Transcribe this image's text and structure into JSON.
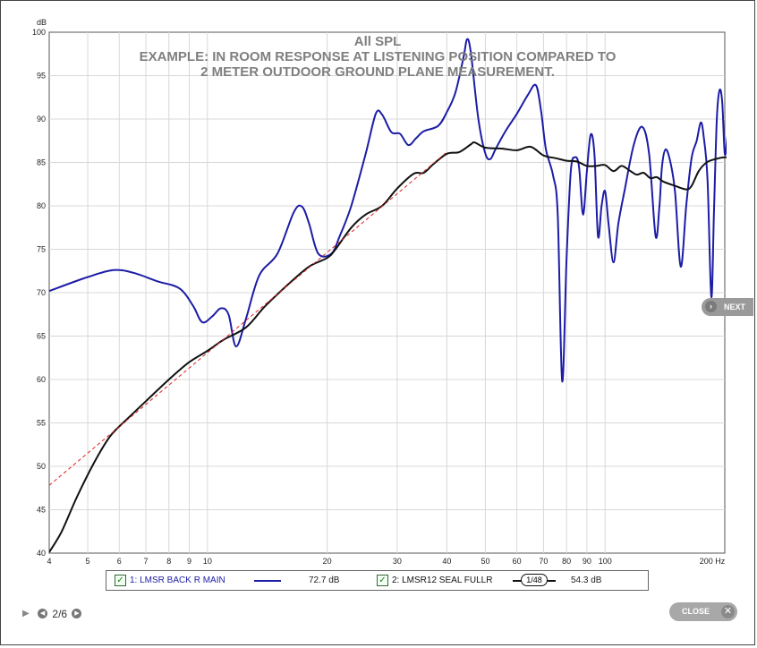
{
  "chart_data": {
    "type": "line",
    "title": "All SPL",
    "subtitle_lines": [
      "EXAMPLE: IN ROOM RESPONSE AT LISTENING POSITION COMPARED TO",
      "2 METER OUTDOOR GROUND PLANE MEASUREMENT."
    ],
    "ylabel": "dB",
    "xlabel": "Hz",
    "xscale": "log",
    "xlim": [
      4,
      200
    ],
    "ylim": [
      40,
      100
    ],
    "x_ticks": [
      4,
      5,
      6,
      7,
      8,
      9,
      10,
      20,
      30,
      40,
      50,
      60,
      70,
      80,
      90,
      100,
      200
    ],
    "x_tick_labels": [
      "4",
      "5",
      "6",
      "7",
      "8",
      "9",
      "10",
      "20",
      "30",
      "40",
      "50",
      "60",
      "70",
      "80",
      "90",
      "100",
      "200 Hz"
    ],
    "y_ticks": [
      40,
      45,
      50,
      55,
      60,
      65,
      70,
      75,
      80,
      85,
      90,
      95,
      100
    ],
    "y_tick_labels": [
      "40",
      "45",
      "50",
      "55",
      "60",
      "65",
      "70",
      "75",
      "80",
      "85",
      "90",
      "95",
      "100"
    ],
    "grid": true,
    "series": [
      {
        "name": "1: LMSR BACK R MAIN",
        "color": "#1c1ca6",
        "points": [
          [
            4,
            70.2
          ],
          [
            5,
            71.8
          ],
          [
            5.8,
            72.6
          ],
          [
            6.5,
            72.3
          ],
          [
            7.5,
            71.3
          ],
          [
            8.5,
            70.5
          ],
          [
            9.2,
            68.5
          ],
          [
            9.7,
            66.6
          ],
          [
            10.3,
            67.3
          ],
          [
            10.8,
            68.2
          ],
          [
            11.3,
            67.5
          ],
          [
            11.8,
            63.8
          ],
          [
            12.5,
            67
          ],
          [
            13.5,
            72
          ],
          [
            15,
            74.5
          ],
          [
            16.5,
            79.3
          ],
          [
            17.3,
            79.9
          ],
          [
            18,
            78
          ],
          [
            19,
            74.5
          ],
          [
            20.5,
            74.5
          ],
          [
            21.5,
            76.5
          ],
          [
            23,
            80
          ],
          [
            25,
            86
          ],
          [
            26.5,
            90.6
          ],
          [
            27.5,
            90.5
          ],
          [
            29,
            88.5
          ],
          [
            30.5,
            88.3
          ],
          [
            32,
            87
          ],
          [
            33.5,
            87.8
          ],
          [
            35,
            88.6
          ],
          [
            38,
            89.2
          ],
          [
            40,
            90.8
          ],
          [
            42,
            93
          ],
          [
            44,
            97
          ],
          [
            45,
            99.2
          ],
          [
            46,
            97.5
          ],
          [
            48,
            90
          ],
          [
            50,
            86
          ],
          [
            51.5,
            85.4
          ],
          [
            53,
            86.5
          ],
          [
            56,
            88.5
          ],
          [
            60,
            90.6
          ],
          [
            64,
            92.8
          ],
          [
            67,
            93.9
          ],
          [
            69,
            91
          ],
          [
            71,
            86.5
          ],
          [
            74,
            83.5
          ],
          [
            76,
            79
          ],
          [
            78,
            59.8
          ],
          [
            80,
            74
          ],
          [
            82,
            84
          ],
          [
            84,
            85.6
          ],
          [
            86,
            84.5
          ],
          [
            88,
            79
          ],
          [
            90,
            84
          ],
          [
            92,
            88.2
          ],
          [
            94,
            86
          ],
          [
            96,
            76.5
          ],
          [
            98,
            80
          ],
          [
            100,
            81.7
          ],
          [
            102,
            78
          ],
          [
            105,
            73.5
          ],
          [
            108,
            78
          ],
          [
            112,
            81.8
          ],
          [
            118,
            87
          ],
          [
            124,
            89.1
          ],
          [
            129,
            86
          ],
          [
            134,
            76.5
          ],
          [
            137,
            80
          ],
          [
            139,
            84.5
          ],
          [
            142,
            86.5
          ],
          [
            146,
            85
          ],
          [
            150,
            81.5
          ],
          [
            155,
            73
          ],
          [
            160,
            80
          ],
          [
            165,
            85.5
          ],
          [
            170,
            87.5
          ],
          [
            174,
            89.6
          ],
          [
            177,
            88
          ],
          [
            181,
            83
          ],
          [
            185,
            69.5
          ],
          [
            188,
            80
          ],
          [
            191,
            90
          ],
          [
            194,
            93.3
          ],
          [
            197,
            92
          ],
          [
            200,
            86
          ],
          [
            203,
            88
          ],
          [
            206,
            89.9
          ]
        ]
      },
      {
        "name": "2: LMSR12 SEAL FULLR",
        "color": "#111111",
        "points": [
          [
            4,
            40.1
          ],
          [
            4.3,
            42.5
          ],
          [
            4.7,
            46.5
          ],
          [
            5.2,
            50.5
          ],
          [
            5.7,
            53.5
          ],
          [
            6.3,
            55.5
          ],
          [
            7,
            57.5
          ],
          [
            8,
            60
          ],
          [
            9,
            62
          ],
          [
            10,
            63.3
          ],
          [
            11,
            64.6
          ],
          [
            12.5,
            66
          ],
          [
            14,
            68.5
          ],
          [
            16,
            71
          ],
          [
            18,
            73
          ],
          [
            20,
            74
          ],
          [
            21,
            75
          ],
          [
            23,
            77.5
          ],
          [
            25,
            79
          ],
          [
            27.5,
            80
          ],
          [
            30,
            82
          ],
          [
            33,
            83.7
          ],
          [
            35,
            83.8
          ],
          [
            37,
            84.8
          ],
          [
            40,
            86
          ],
          [
            43,
            86.2
          ],
          [
            46,
            87.1
          ],
          [
            47,
            87.3
          ],
          [
            50,
            86.7
          ],
          [
            55,
            86.6
          ],
          [
            60,
            86.4
          ],
          [
            65,
            86.8
          ],
          [
            70,
            85.8
          ],
          [
            75,
            85.5
          ],
          [
            80,
            85.2
          ],
          [
            85,
            85.1
          ],
          [
            90,
            84.6
          ],
          [
            95,
            84.6
          ],
          [
            100,
            84.7
          ],
          [
            105,
            84
          ],
          [
            110,
            84.6
          ],
          [
            115,
            84.1
          ],
          [
            120,
            83.6
          ],
          [
            125,
            83.8
          ],
          [
            130,
            83.2
          ],
          [
            135,
            83.3
          ],
          [
            140,
            82.8
          ],
          [
            150,
            82.3
          ],
          [
            160,
            81.9
          ],
          [
            165,
            82.3
          ],
          [
            172,
            84
          ],
          [
            180,
            85
          ],
          [
            190,
            85.4
          ],
          [
            200,
            85.6
          ],
          [
            206,
            85.5
          ]
        ]
      },
      {
        "name": "",
        "color": "#dd2222",
        "dashed": true,
        "points": [
          [
            4,
            47.8
          ],
          [
            40,
            86.2
          ]
        ]
      }
    ]
  },
  "legend": {
    "items": [
      {
        "label": "1: LMSR BACK R MAIN",
        "value": "72.7 dB",
        "color": "#1c1ca6",
        "checked": true
      },
      {
        "label": "2: LMSR12 SEAL FULLR",
        "value": "54.3 dB",
        "color": "#111111",
        "checked": true
      }
    ],
    "smoothing": "1/48"
  },
  "nav": {
    "next_label": "NEXT",
    "close_label": "CLOSE",
    "page_indicator": "2/6"
  }
}
